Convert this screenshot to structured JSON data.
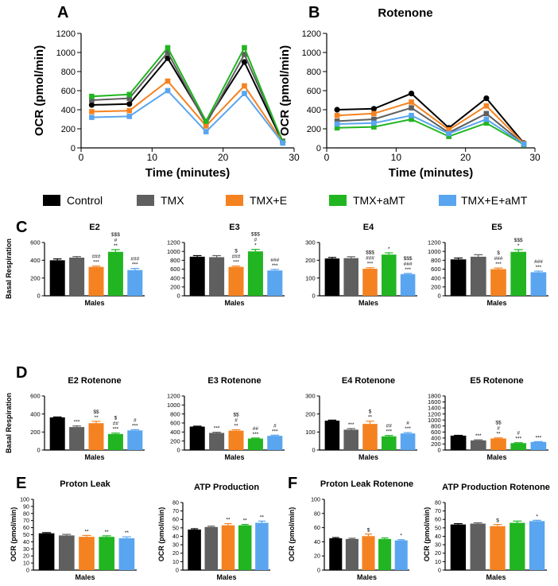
{
  "colors": {
    "Control": "#000000",
    "TMX": "#5f5f5f",
    "TMX+E": "#f58220",
    "TMX+aMT": "#22b522",
    "TMX+E+aMT": "#5aa5ef"
  },
  "panel_letters": [
    "A",
    "B",
    "C",
    "D",
    "E",
    "F"
  ],
  "legend": [
    "Control",
    "TMX",
    "TMX+E",
    "TMX+aMT",
    "TMX+E+aMT"
  ],
  "chart_data": [
    {
      "id": "A",
      "type": "line",
      "title": "",
      "xlabel": "Time (minutes)",
      "ylabel": "OCR (pmol/min)",
      "xlim": [
        0,
        30
      ],
      "xticks": [
        0,
        10,
        20,
        30
      ],
      "ylim": [
        0,
        1200
      ],
      "yticks": [
        0,
        200,
        400,
        600,
        800,
        1000,
        1200
      ],
      "x": [
        1.5,
        6.8,
        12.2,
        17.6,
        23.0,
        28.4
      ],
      "series": [
        {
          "name": "Control",
          "values": [
            450,
            460,
            940,
            270,
            900,
            60
          ]
        },
        {
          "name": "TMX",
          "values": [
            500,
            520,
            1000,
            250,
            980,
            70
          ]
        },
        {
          "name": "TMX+E",
          "values": [
            380,
            390,
            700,
            230,
            650,
            60
          ]
        },
        {
          "name": "TMX+aMT",
          "values": [
            540,
            560,
            1050,
            280,
            1050,
            60
          ]
        },
        {
          "name": "TMX+E+aMT",
          "values": [
            320,
            330,
            600,
            170,
            570,
            50
          ]
        }
      ]
    },
    {
      "id": "B",
      "type": "line",
      "title": "Rotenone",
      "xlabel": "Time (minutes)",
      "ylabel": "OCR (pmol/min)",
      "xlim": [
        0,
        30
      ],
      "xticks": [
        0,
        10,
        20,
        30
      ],
      "ylim": [
        0,
        1200
      ],
      "yticks": [
        0,
        200,
        400,
        600,
        800,
        1000,
        1200
      ],
      "x": [
        1.5,
        6.8,
        12.2,
        17.6,
        23.0,
        28.4
      ],
      "series": [
        {
          "name": "Control",
          "values": [
            400,
            410,
            570,
            210,
            520,
            50
          ]
        },
        {
          "name": "TMX",
          "values": [
            280,
            300,
            420,
            160,
            360,
            40
          ]
        },
        {
          "name": "TMX+E",
          "values": [
            340,
            360,
            480,
            190,
            440,
            45
          ]
        },
        {
          "name": "TMX+aMT",
          "values": [
            210,
            220,
            300,
            120,
            260,
            35
          ]
        },
        {
          "name": "TMX+E+aMT",
          "values": [
            250,
            260,
            340,
            150,
            300,
            40
          ]
        }
      ]
    },
    {
      "id": "C-E2",
      "type": "bar",
      "title": "E2",
      "xlabel": "Males",
      "ylabel": "Basal Respiration",
      "ylim": [
        0,
        600
      ],
      "yticks": [
        0,
        200,
        400,
        600
      ],
      "categories": [
        "Control",
        "TMX",
        "TMX+E",
        "TMX+aMT",
        "TMX+E+aMT"
      ],
      "values": [
        400,
        430,
        325,
        495,
        290
      ],
      "errors": [
        15,
        12,
        10,
        25,
        18
      ],
      "annotations": [
        "",
        "",
        "###\n***",
        "$$$\n#\n**",
        "###\n***"
      ]
    },
    {
      "id": "C-E3",
      "type": "bar",
      "title": "E3",
      "xlabel": "",
      "ylabel": "",
      "ylim": [
        0,
        1200
      ],
      "yticks": [
        0,
        200,
        400,
        600,
        800,
        1000,
        1200
      ],
      "categories": [
        "Control",
        "TMX",
        "TMX+E",
        "TMX+aMT",
        "TMX+E+aMT"
      ],
      "values": [
        880,
        870,
        650,
        1000,
        570
      ],
      "errors": [
        25,
        35,
        20,
        45,
        25
      ],
      "annotations": [
        "",
        "",
        "$\n###\n***",
        "$$$\n#\n*",
        "###\n***"
      ]
    },
    {
      "id": "C-E4",
      "type": "bar",
      "title": "E4",
      "xlabel": "",
      "ylabel": "",
      "ylim": [
        0,
        300
      ],
      "yticks": [
        0,
        100,
        200,
        300
      ],
      "categories": [
        "Control",
        "TMX",
        "TMX+E",
        "TMX+aMT",
        "TMX+E+aMT"
      ],
      "values": [
        210,
        212,
        152,
        232,
        122
      ],
      "errors": [
        6,
        8,
        6,
        10,
        4
      ],
      "annotations": [
        "",
        "",
        "$$$\n###\n***",
        "*",
        "$$$\n###\n***"
      ]
    },
    {
      "id": "C-E5",
      "type": "bar",
      "title": "E5",
      "xlabel": "",
      "ylabel": "",
      "ylim": [
        0,
        1200
      ],
      "yticks": [
        0,
        200,
        400,
        600,
        800,
        1000,
        1200
      ],
      "categories": [
        "Control",
        "TMX",
        "TMX+E",
        "TMX+aMT",
        "TMX+E+aMT"
      ],
      "values": [
        820,
        880,
        600,
        990,
        530
      ],
      "errors": [
        30,
        45,
        25,
        50,
        25
      ],
      "annotations": [
        "",
        "",
        "$\n###\n***",
        "$$$\n*",
        "###\n***"
      ]
    },
    {
      "id": "D-E2",
      "type": "bar",
      "title": "E2 Rotenone",
      "xlabel": "Males",
      "ylabel": "Basal Respiration",
      "ylim": [
        0,
        600
      ],
      "yticks": [
        0,
        200,
        400,
        600
      ],
      "categories": [
        "Control",
        "TMX",
        "TMX+E",
        "TMX+aMT",
        "TMX+E+aMT"
      ],
      "values": [
        362,
        255,
        298,
        178,
        218
      ],
      "errors": [
        5,
        12,
        20,
        10,
        8
      ],
      "annotations": [
        "",
        "***",
        "$$\n**",
        "$\n##\n***",
        "#\n***"
      ]
    },
    {
      "id": "D-E3",
      "type": "bar",
      "title": "E3 Rotenone",
      "xlabel": "",
      "ylabel": "",
      "ylim": [
        0,
        1200
      ],
      "yticks": [
        0,
        200,
        400,
        600,
        800,
        1000,
        1200
      ],
      "categories": [
        "Control",
        "TMX",
        "TMX+E",
        "TMX+aMT",
        "TMX+E+aMT"
      ],
      "values": [
        520,
        380,
        430,
        255,
        315
      ],
      "errors": [
        10,
        15,
        20,
        12,
        15
      ],
      "annotations": [
        "",
        "***",
        "$$\n#\n**",
        "##\n***",
        "#\n***"
      ]
    },
    {
      "id": "D-E4",
      "type": "bar",
      "title": "E4 Rotenone",
      "xlabel": "",
      "ylabel": "",
      "ylim": [
        0,
        300
      ],
      "yticks": [
        0,
        100,
        200,
        300
      ],
      "categories": [
        "Control",
        "TMX",
        "TMX+E",
        "TMX+aMT",
        "TMX+E+aMT"
      ],
      "values": [
        163,
        113,
        145,
        76,
        92
      ],
      "errors": [
        3,
        6,
        15,
        5,
        5
      ],
      "annotations": [
        "",
        "***",
        "$\n**",
        "##\n***",
        "#\n***"
      ]
    },
    {
      "id": "D-E5",
      "type": "bar",
      "title": "E5 Rotenone",
      "xlabel": "Males",
      "ylabel": "",
      "ylim": [
        0,
        1800
      ],
      "yticks": [
        0,
        200,
        400,
        600,
        800,
        1000,
        1200,
        1400,
        1600,
        1800
      ],
      "categories": [
        "Control",
        "TMX",
        "TMX+E",
        "TMX+aMT",
        "TMX+E+aMT"
      ],
      "values": [
        480,
        320,
        385,
        230,
        270
      ],
      "errors": [
        10,
        20,
        20,
        15,
        12
      ],
      "annotations": [
        "",
        "***",
        "$$\n#\n**",
        "#\n***",
        "***"
      ]
    },
    {
      "id": "E-PL",
      "type": "bar",
      "title": "Proton Leak",
      "xlabel": "Males",
      "ylabel": "OCR (pmol/min)",
      "ylim": [
        0,
        100
      ],
      "yticks": [
        0,
        10,
        20,
        30,
        40,
        50,
        60,
        70,
        80,
        90,
        100
      ],
      "categories": [
        "Control",
        "TMX",
        "TMX+E",
        "TMX+aMT",
        "TMX+E+aMT"
      ],
      "values": [
        52,
        49,
        47,
        47,
        45
      ],
      "errors": [
        1,
        1.5,
        2,
        1.5,
        2
      ],
      "annotations": [
        "",
        "",
        "**",
        "**",
        "**"
      ]
    },
    {
      "id": "E-ATP",
      "type": "bar",
      "title": "ATP Production",
      "xlabel": "Males",
      "ylabel": "OCR (pmol/min)",
      "ylim": [
        0,
        80
      ],
      "yticks": [
        0,
        10,
        20,
        30,
        40,
        50,
        60,
        70,
        80
      ],
      "categories": [
        "Control",
        "TMX",
        "TMX+E",
        "TMX+aMT",
        "TMX+E+aMT"
      ],
      "values": [
        48,
        51,
        53,
        53,
        56
      ],
      "errors": [
        1,
        1,
        2,
        1,
        2
      ],
      "annotations": [
        "",
        "",
        "**",
        "**",
        "**"
      ]
    },
    {
      "id": "F-PL",
      "type": "bar",
      "title": "Proton Leak Rotenone",
      "xlabel": "Males",
      "ylabel": "OCR (pmol/min)",
      "ylim": [
        0,
        100
      ],
      "yticks": [
        0,
        20,
        40,
        60,
        80,
        100
      ],
      "categories": [
        "Control",
        "TMX",
        "TMX+E",
        "TMX+aMT",
        "TMX+E+aMT"
      ],
      "values": [
        45,
        44,
        48,
        44,
        42
      ],
      "errors": [
        1,
        1,
        3,
        1.5,
        1
      ],
      "annotations": [
        "",
        "",
        "$",
        "",
        "*"
      ]
    },
    {
      "id": "F-ATP",
      "type": "bar",
      "title": "ATP Production Rotenone",
      "xlabel": "Males",
      "ylabel": "OCR (pmol/min)",
      "ylim": [
        0,
        80
      ],
      "yticks": [
        0,
        10,
        20,
        30,
        40,
        50,
        60,
        70,
        80
      ],
      "categories": [
        "Control",
        "TMX",
        "TMX+E",
        "TMX+aMT",
        "TMX+E+aMT"
      ],
      "values": [
        54,
        55,
        52,
        56,
        58
      ],
      "errors": [
        1,
        1,
        2,
        2,
        1
      ],
      "annotations": [
        "",
        "",
        "$",
        "",
        "*"
      ]
    }
  ]
}
